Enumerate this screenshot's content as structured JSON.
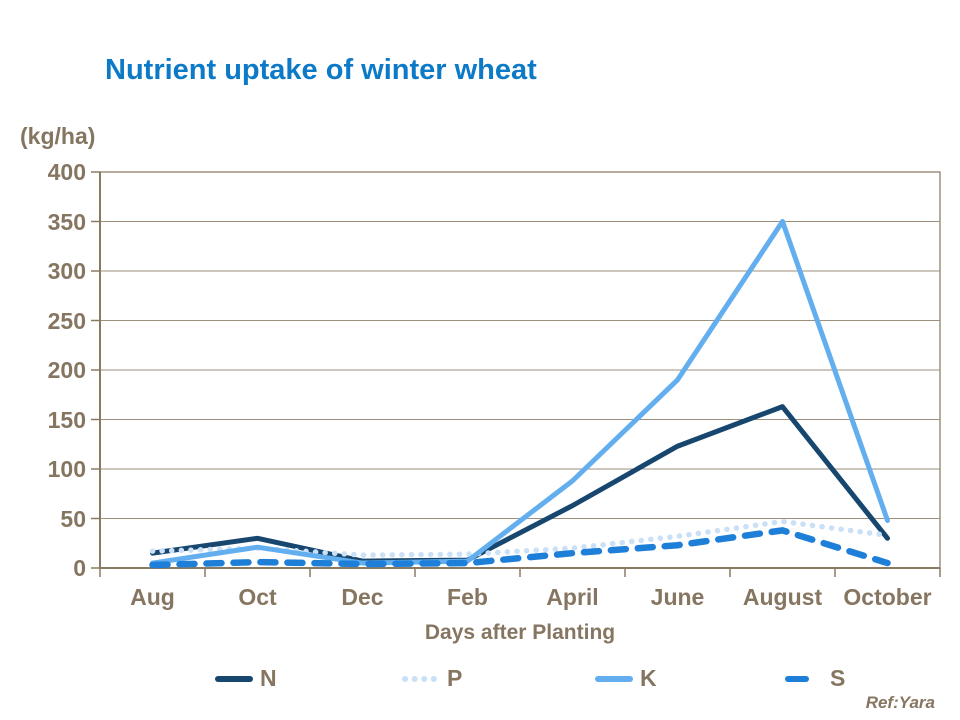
{
  "title": "Nutrient uptake of winter wheat",
  "footer": {
    "ref_label": "Ref:Yara"
  },
  "colors": {
    "title": "#0d7ac8",
    "axis_text": "#867661",
    "axis_line": "#8a7a64",
    "grid": "#9d8f7c",
    "background": "#ffffff",
    "series_n": "#17466F",
    "series_p": "#C9E0F7",
    "series_k": "#63AEEF",
    "series_s": "#1E7FD8"
  },
  "chart_data": {
    "type": "line",
    "title": "Nutrient uptake of winter wheat",
    "xlabel": "Days after Planting",
    "ylabel": "(kg/ha)",
    "categories": [
      "Aug",
      "Oct",
      "Dec",
      "Feb",
      "April",
      "June",
      "August",
      "October"
    ],
    "ylim": [
      0,
      400
    ],
    "ytick_step": 50,
    "grid": "horizontal",
    "legend_position": "bottom",
    "series": [
      {
        "name": "N",
        "style": "solid",
        "color": "#17466F",
        "width": 5,
        "values": [
          15,
          30,
          7,
          8,
          63,
          123,
          163,
          30
        ]
      },
      {
        "name": "P",
        "style": "dotted",
        "color": "#C9E0F7",
        "width": 5.5,
        "values": [
          17,
          20,
          13,
          14,
          20,
          32,
          47,
          33
        ]
      },
      {
        "name": "K",
        "style": "solid",
        "color": "#63AEEF",
        "width": 5,
        "values": [
          5,
          21,
          5,
          7,
          88,
          190,
          350,
          48
        ]
      },
      {
        "name": "S",
        "style": "dashed",
        "color": "#1E7FD8",
        "width": 6.5,
        "values": [
          3,
          6,
          4,
          5,
          15,
          23,
          38,
          5
        ]
      }
    ]
  }
}
